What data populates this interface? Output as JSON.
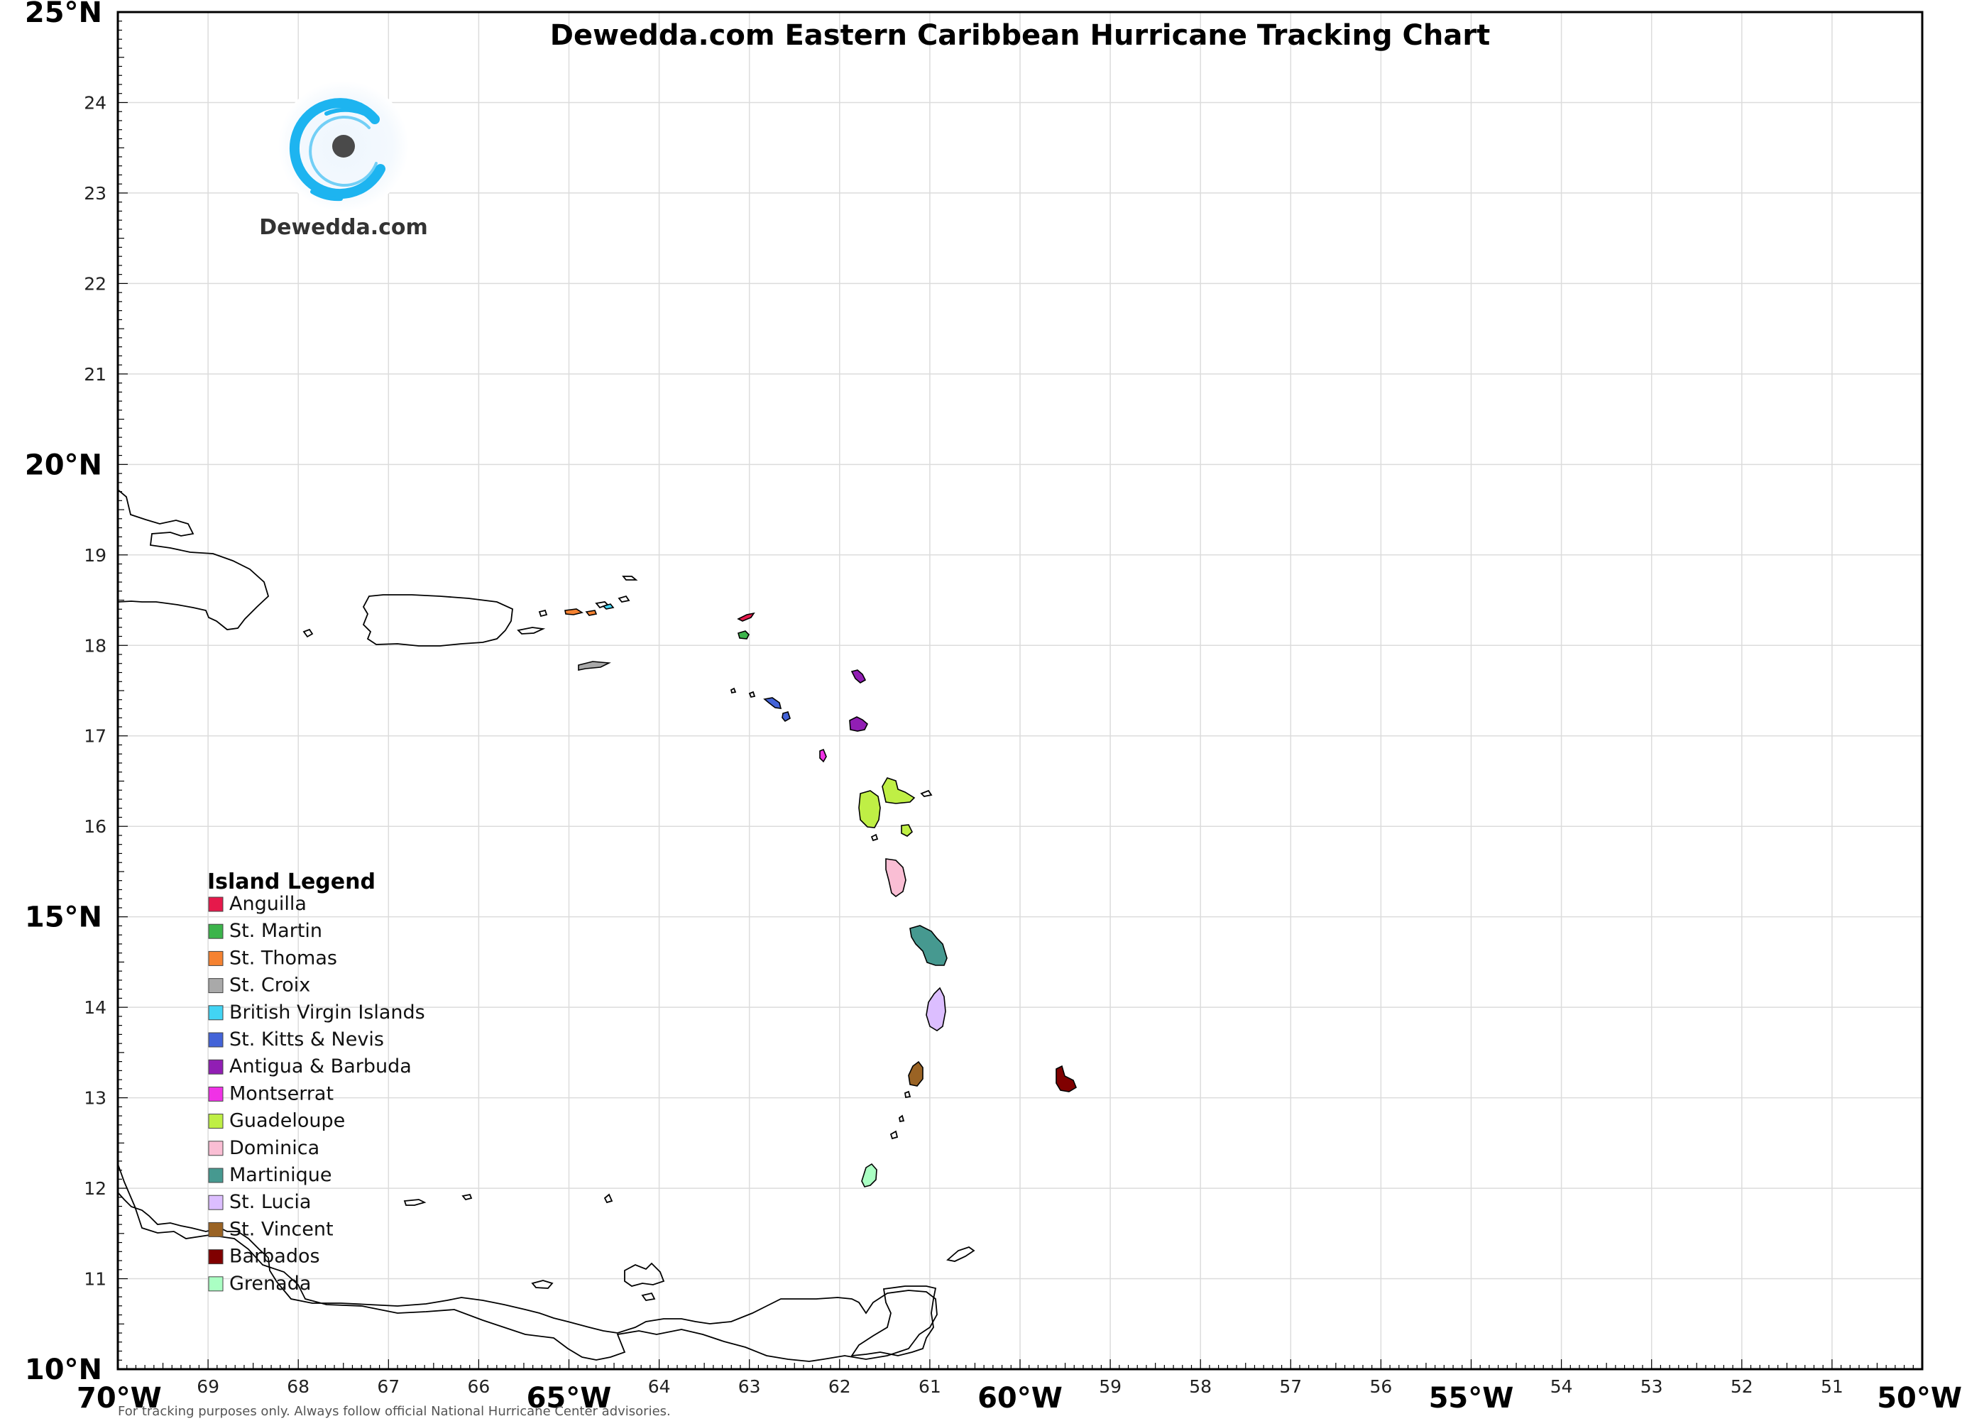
{
  "title": "Dewedda.com Eastern Caribbean Hurricane Tracking Chart",
  "brand": {
    "name": "Dewedda.com",
    "logo_icon": "hurricane-swirl-icon",
    "accent": "#1db4f0"
  },
  "axes": {
    "lon_range": [
      -70,
      -50
    ],
    "lat_range": [
      10,
      25
    ],
    "x_ticks": [
      {
        "lon": -70,
        "label": "70°W",
        "major": true
      },
      {
        "lon": -69,
        "label": "69",
        "major": false
      },
      {
        "lon": -68,
        "label": "68",
        "major": false
      },
      {
        "lon": -67,
        "label": "67",
        "major": false
      },
      {
        "lon": -66,
        "label": "66",
        "major": false
      },
      {
        "lon": -65,
        "label": "65°W",
        "major": true
      },
      {
        "lon": -64,
        "label": "64",
        "major": false
      },
      {
        "lon": -63,
        "label": "63",
        "major": false
      },
      {
        "lon": -62,
        "label": "62",
        "major": false
      },
      {
        "lon": -61,
        "label": "61",
        "major": false
      },
      {
        "lon": -60,
        "label": "60°W",
        "major": true
      },
      {
        "lon": -59,
        "label": "59",
        "major": false
      },
      {
        "lon": -58,
        "label": "58",
        "major": false
      },
      {
        "lon": -57,
        "label": "57",
        "major": false
      },
      {
        "lon": -56,
        "label": "56",
        "major": false
      },
      {
        "lon": -55,
        "label": "55°W",
        "major": true
      },
      {
        "lon": -54,
        "label": "54",
        "major": false
      },
      {
        "lon": -53,
        "label": "53",
        "major": false
      },
      {
        "lon": -52,
        "label": "52",
        "major": false
      },
      {
        "lon": -51,
        "label": "51",
        "major": false
      },
      {
        "lon": -50,
        "label": "50°W",
        "major": true
      }
    ],
    "y_ticks": [
      {
        "lat": 10,
        "label": "10°N",
        "major": true
      },
      {
        "lat": 11,
        "label": "11",
        "major": false
      },
      {
        "lat": 12,
        "label": "12",
        "major": false
      },
      {
        "lat": 13,
        "label": "13",
        "major": false
      },
      {
        "lat": 14,
        "label": "14",
        "major": false
      },
      {
        "lat": 15,
        "label": "15°N",
        "major": true
      },
      {
        "lat": 16,
        "label": "16",
        "major": false
      },
      {
        "lat": 17,
        "label": "17",
        "major": false
      },
      {
        "lat": 18,
        "label": "18",
        "major": false
      },
      {
        "lat": 19,
        "label": "19",
        "major": false
      },
      {
        "lat": 20,
        "label": "20°N",
        "major": true
      },
      {
        "lat": 21,
        "label": "21",
        "major": false
      },
      {
        "lat": 22,
        "label": "22",
        "major": false
      },
      {
        "lat": 23,
        "label": "23",
        "major": false
      },
      {
        "lat": 24,
        "label": "24",
        "major": false
      },
      {
        "lat": 25,
        "label": "25°N",
        "major": true
      }
    ],
    "grid": true,
    "minor_ticks_per_degree": 10
  },
  "legend": {
    "title": "Island Legend",
    "placement": "lower-left",
    "items": [
      {
        "label": "Anguilla",
        "color": "#e6194b"
      },
      {
        "label": "St. Martin",
        "color": "#3cb44b"
      },
      {
        "label": "St. Thomas",
        "color": "#f58231"
      },
      {
        "label": "St. Croix",
        "color": "#a9a9a9"
      },
      {
        "label": "British Virgin Islands",
        "color": "#42d4f4"
      },
      {
        "label": "St. Kitts & Nevis",
        "color": "#4363d8"
      },
      {
        "label": "Antigua & Barbuda",
        "color": "#911eb4"
      },
      {
        "label": "Montserrat",
        "color": "#f032e6"
      },
      {
        "label": "Guadeloupe",
        "color": "#bfef45"
      },
      {
        "label": "Dominica",
        "color": "#fabed4"
      },
      {
        "label": "Martinique",
        "color": "#469990"
      },
      {
        "label": "St. Lucia",
        "color": "#dcbeff"
      },
      {
        "label": "St. Vincent",
        "color": "#9a6324"
      },
      {
        "label": "Barbados",
        "color": "#800000"
      },
      {
        "label": "Grenada",
        "color": "#aaffc3"
      }
    ]
  },
  "footer": {
    "disclaimer": "For tracking purposes only. Always follow official National Hurricane Center advisories."
  }
}
